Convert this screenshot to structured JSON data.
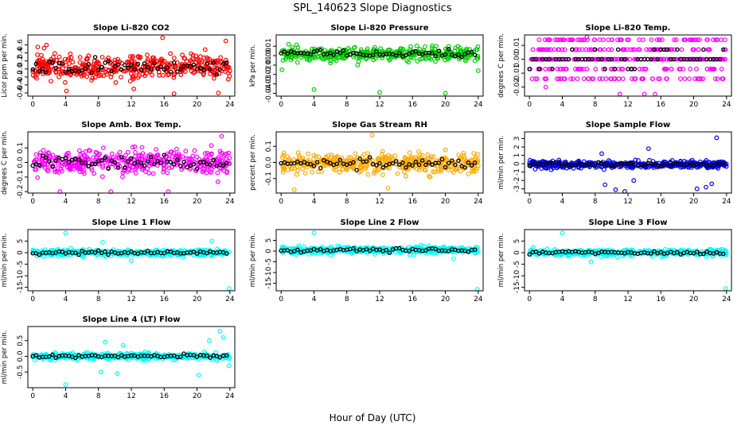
{
  "figure": {
    "title": "SPL_140623  Slope Diagnostics",
    "xlabel": "Hour of Day (UTC)"
  },
  "chart_data": [
    {
      "type": "scatter",
      "title": "Slope Li-820 CO2",
      "ylabel": "Licor ppm per min.",
      "color": "#ff0000",
      "xlim": [
        -0.6,
        24.6
      ],
      "xticks": [
        0,
        4,
        8,
        12,
        16,
        20,
        24
      ],
      "ylim": [
        -0.68,
        0.85
      ],
      "yticks": [
        -0.6,
        -0.4,
        -0.2,
        0.0,
        0.2,
        0.4,
        0.6
      ],
      "ytick_labels": [
        "-0.6",
        "-0.4",
        "-0.2",
        "0.0",
        "0.2",
        "0.4",
        "0.6"
      ],
      "spread": 0.28,
      "center": 0.05,
      "seed": 11,
      "outliers": [
        [
          0.6,
          0.55
        ],
        [
          15.8,
          0.78
        ],
        [
          23.5,
          0.7
        ],
        [
          4.1,
          -0.55
        ],
        [
          12.3,
          -0.5
        ],
        [
          17.2,
          -0.62
        ],
        [
          22.6,
          -0.6
        ]
      ]
    },
    {
      "type": "scatter",
      "title": "Slope Li-820 Pressure",
      "ylabel": "kPa per min.",
      "color": "#00cc00",
      "xlim": [
        -0.6,
        24.6
      ],
      "xticks": [
        0,
        4,
        8,
        12,
        16,
        20,
        24
      ],
      "ylim": [
        -0.043,
        0.022
      ],
      "yticks": [
        -0.04,
        -0.03,
        -0.02,
        -0.01,
        0.0,
        0.01
      ],
      "ytick_labels": [
        "-0.04",
        "-0.03",
        "-0.02",
        "-0.01",
        "0.00",
        "0.01"
      ],
      "spread": 0.006,
      "center": 0.002,
      "seed": 23,
      "outliers": [
        [
          0.1,
          -0.015
        ],
        [
          4.0,
          -0.036
        ],
        [
          12.0,
          -0.039
        ],
        [
          20.0,
          -0.04
        ],
        [
          0.9,
          0.012
        ],
        [
          24.0,
          -0.016
        ]
      ]
    },
    {
      "type": "scatter",
      "title": "Slope Li-820 Temp.",
      "ylabel": "degrees C per min.",
      "color": "#ff00ff",
      "xlim": [
        -0.6,
        24.6
      ],
      "xticks": [
        0,
        4,
        8,
        12,
        16,
        20,
        24
      ],
      "ylim": [
        -0.0265,
        0.0175
      ],
      "yticks": [
        -0.02,
        -0.01,
        0.0,
        0.01
      ],
      "ytick_labels": [
        "-0.02",
        "-0.01",
        "0.00",
        "0.01"
      ],
      "discrete": true,
      "levels": [
        0.0,
        0.0,
        0.0,
        -0.007,
        0.007,
        -0.014,
        0.014
      ],
      "seed": 37,
      "outliers": [
        [
          7.0,
          0.016
        ],
        [
          11.0,
          -0.025
        ],
        [
          14.0,
          -0.025
        ],
        [
          15.3,
          -0.025
        ],
        [
          2.0,
          -0.02
        ]
      ]
    },
    {
      "type": "scatter",
      "title": "Slope Amb. Box Temp.",
      "ylabel": "degrees C per min.",
      "color": "#ff00ff",
      "xlim": [
        -0.6,
        24.6
      ],
      "xticks": [
        0,
        4,
        8,
        12,
        16,
        20,
        24
      ],
      "ylim": [
        -0.21,
        0.21
      ],
      "yticks": [
        -0.2,
        -0.1,
        0.0,
        0.1
      ],
      "ytick_labels": [
        "-0.2",
        "-0.1",
        "0.0",
        "0.1"
      ],
      "spread": 0.075,
      "center": 0.0,
      "seed": 41,
      "outliers": [
        [
          3.3,
          -0.2
        ],
        [
          9.5,
          -0.2
        ],
        [
          16.5,
          -0.2
        ],
        [
          23.0,
          0.18
        ]
      ]
    },
    {
      "type": "scatter",
      "title": "Slope Gas Stream RH",
      "ylabel": "percent per min.",
      "color": "#ffaa00",
      "xlim": [
        -0.6,
        24.6
      ],
      "xticks": [
        0,
        4,
        8,
        12,
        16,
        20,
        24
      ],
      "ylim": [
        -0.19,
        0.19
      ],
      "yticks": [
        -0.1,
        0.0,
        0.1
      ],
      "ytick_labels": [
        "-0.1",
        "0.0",
        "0.1"
      ],
      "spread": 0.055,
      "center": -0.005,
      "seed": 53,
      "outliers": [
        [
          11.1,
          0.17
        ],
        [
          1.6,
          -0.17
        ],
        [
          13.0,
          -0.16
        ]
      ]
    },
    {
      "type": "scatter",
      "title": "Slope Sample Flow",
      "ylabel": "ml/min per min.",
      "color": "#0000ee",
      "xlim": [
        -0.6,
        24.6
      ],
      "xticks": [
        0,
        4,
        8,
        12,
        16,
        20,
        24
      ],
      "ylim": [
        -3.5,
        3.8
      ],
      "yticks": [
        -3,
        -2,
        -1,
        0,
        1,
        2,
        3
      ],
      "ytick_labels": [
        "-3",
        "-2",
        "-1",
        "0",
        "1",
        "2",
        "3"
      ],
      "spread": 0.35,
      "center": -0.1,
      "seed": 67,
      "outliers": [
        [
          10.5,
          -3.1
        ],
        [
          9.2,
          -2.5
        ],
        [
          11.6,
          -3.3
        ],
        [
          20.4,
          -3.0
        ],
        [
          21.5,
          -2.8
        ],
        [
          22.2,
          -2.4
        ],
        [
          22.8,
          3.1
        ],
        [
          14.5,
          1.8
        ],
        [
          8.8,
          1.2
        ],
        [
          12.7,
          -2.0
        ]
      ]
    },
    {
      "type": "scatter",
      "title": "Slope Line 1 Flow",
      "ylabel": "ml/min per min.",
      "color": "#00ffff",
      "xlim": [
        -0.6,
        24.6
      ],
      "xticks": [
        0,
        4,
        8,
        12,
        16,
        20,
        24
      ],
      "ylim": [
        -16.5,
        10
      ],
      "yticks": [
        -15,
        -10,
        -5,
        0,
        5
      ],
      "ytick_labels": [
        "-15",
        "-10",
        "-5",
        "0",
        "5"
      ],
      "spread": 1.2,
      "center": 0.0,
      "seed": 71,
      "outliers": [
        [
          4.0,
          8.5
        ],
        [
          8.5,
          4.5
        ],
        [
          23.9,
          -15.5
        ],
        [
          12.0,
          -3.5
        ],
        [
          21.8,
          5.0
        ]
      ]
    },
    {
      "type": "scatter",
      "title": "Slope Line 2 Flow",
      "ylabel": "ml/min per min.",
      "color": "#00ffff",
      "xlim": [
        -0.6,
        24.6
      ],
      "xticks": [
        0,
        4,
        8,
        12,
        16,
        20,
        24
      ],
      "ylim": [
        -18.5,
        10
      ],
      "yticks": [
        -15,
        -10,
        -5,
        0,
        5
      ],
      "ytick_labels": [
        "-15",
        "-10",
        "-5",
        "0",
        "5"
      ],
      "spread": 1.4,
      "center": 0.5,
      "seed": 83,
      "outliers": [
        [
          4.0,
          8.5
        ],
        [
          23.9,
          -17.8
        ],
        [
          21.0,
          -3.5
        ]
      ]
    },
    {
      "type": "scatter",
      "title": "Slope Line 3 Flow",
      "ylabel": "ml/min per min.",
      "color": "#00ffff",
      "xlim": [
        -0.6,
        24.6
      ],
      "xticks": [
        0,
        4,
        8,
        12,
        16,
        20,
        24
      ],
      "ylim": [
        -16.5,
        10
      ],
      "yticks": [
        -15,
        -10,
        -5,
        0,
        5
      ],
      "ytick_labels": [
        "-15",
        "-10",
        "-5",
        "0",
        "5"
      ],
      "spread": 1.3,
      "center": 0.0,
      "seed": 97,
      "outliers": [
        [
          4.0,
          8.5
        ],
        [
          23.9,
          -15.5
        ],
        [
          7.5,
          -4.0
        ]
      ]
    },
    {
      "type": "scatter",
      "title": "Slope Line 4 (LT) Flow",
      "ylabel": "ml/min per min.",
      "color": "#00ffff",
      "xlim": [
        -0.6,
        24.6
      ],
      "xticks": [
        0,
        4,
        8,
        12,
        16,
        20,
        24
      ],
      "ylim": [
        -1.0,
        0.95
      ],
      "yticks": [
        -0.5,
        0.0,
        0.5
      ],
      "ytick_labels": [
        "-0.5",
        "0.0",
        "0.5"
      ],
      "spread": 0.09,
      "center": 0.0,
      "seed": 101,
      "outliers": [
        [
          4.0,
          -0.9
        ],
        [
          8.3,
          -0.5
        ],
        [
          8.8,
          0.45
        ],
        [
          10.3,
          -0.55
        ],
        [
          11.0,
          0.35
        ],
        [
          20.2,
          -0.6
        ],
        [
          21.5,
          0.5
        ],
        [
          22.8,
          0.8
        ],
        [
          23.2,
          0.6
        ],
        [
          23.9,
          -0.3
        ]
      ]
    }
  ]
}
